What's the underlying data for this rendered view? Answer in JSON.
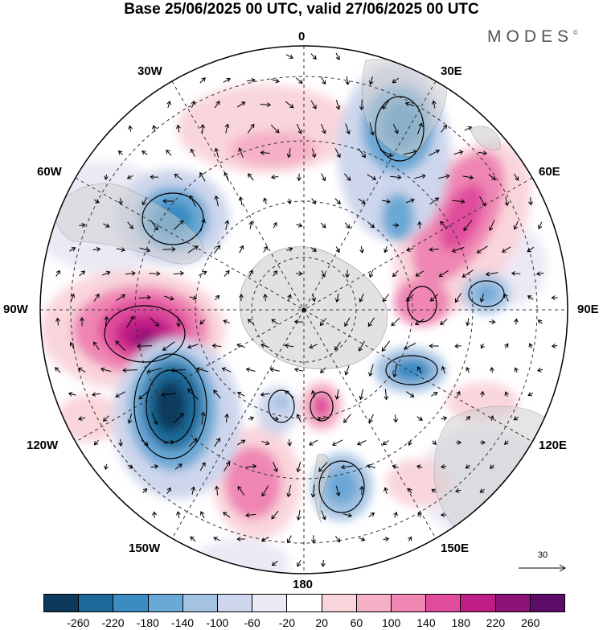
{
  "title": "Base 25/06/2025 00 UTC, valid 27/06/2025 00 UTC",
  "brand": "MODES",
  "brand_mark": "©",
  "longitude_labels": {
    "top": "0",
    "top_right": "30E",
    "right_upper": "60E",
    "right": "90E",
    "right_lower": "120E",
    "bottom_right": "150E",
    "bottom": "180",
    "bottom_left": "150W",
    "left_lower": "120W",
    "left": "90W",
    "left_upper": "60W",
    "top_left": "30W"
  },
  "reference_vector": {
    "label": "30"
  },
  "colorbar": {
    "colors": [
      "#0d3a5c",
      "#1d6a9a",
      "#3a8cc2",
      "#6aa8d6",
      "#a4c3e3",
      "#cdd6ec",
      "#ebe9f4",
      "#ffffff",
      "#f9d5dc",
      "#f5b0c6",
      "#ef86b4",
      "#e04d9c",
      "#bf1e86",
      "#8c1178",
      "#5b0d68"
    ],
    "tick_labels": [
      "-260",
      "-220",
      "-180",
      "-140",
      "-100",
      "-60",
      "-20",
      "20",
      "60",
      "100",
      "140",
      "180",
      "220",
      "260"
    ]
  }
}
